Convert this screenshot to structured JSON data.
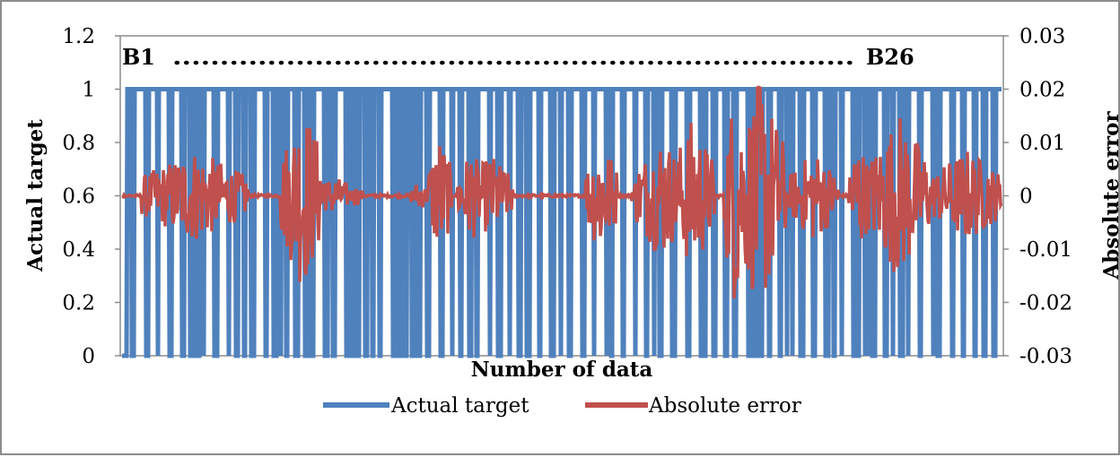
{
  "chart_data": {
    "type": "line",
    "title": "",
    "xlabel": "Number of data",
    "ylabel": "Actual target",
    "y2label": "Absolute error",
    "ylim": [
      0,
      1.2
    ],
    "y2lim": [
      -0.03,
      0.03
    ],
    "yticks": [
      "0",
      "0.2",
      "0.4",
      "0.6",
      "0.8",
      "1",
      "1.2"
    ],
    "y2ticks": [
      "-0.03",
      "-0.02",
      "-0.01",
      "0",
      "0.01",
      "0.02",
      "0.03"
    ],
    "grid": false,
    "legend": "bottom-center",
    "annotations": {
      "left": "B1",
      "right": "B26",
      "dots": "........................................................................"
    },
    "series": [
      {
        "name": "Actual target",
        "axis": "left",
        "color": "#4f81bd",
        "values": "binary 0/1 target sequence across 26 batches"
      },
      {
        "name": "Absolute error",
        "axis": "right",
        "color": "#c0504d",
        "values": "error oscillating around 0, bursts up to +0.025 / -0.027"
      }
    ]
  }
}
